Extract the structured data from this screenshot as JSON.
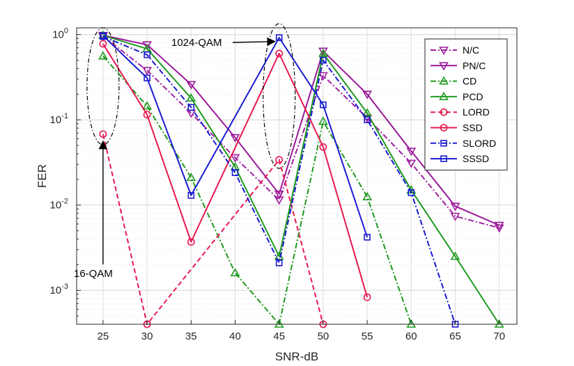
{
  "chart_data": {
    "type": "line",
    "title": "",
    "xlabel": "SNR-dB",
    "ylabel": "FER",
    "xlim": [
      22,
      72
    ],
    "ylim": [
      0.0004,
      1.2
    ],
    "yscale": "log",
    "grid": true,
    "x_ticks": [
      25,
      30,
      35,
      40,
      45,
      50,
      55,
      60,
      65,
      70
    ],
    "x_tick_labels": [
      "25",
      "30",
      "35",
      "40",
      "45",
      "50",
      "55",
      "60",
      "65",
      "70"
    ],
    "y_ticks": [
      {
        "value": 1,
        "base": "10",
        "exp": "0"
      },
      {
        "value": 0.1,
        "base": "10",
        "exp": "-1"
      },
      {
        "value": 0.01,
        "base": "10",
        "exp": "-2"
      },
      {
        "value": 0.001,
        "base": "10",
        "exp": "-3"
      }
    ],
    "legend_position": "top-right",
    "series": [
      {
        "name": "N/C",
        "color": "#a020a0",
        "dash": "dashdot",
        "marker": "triangle-down",
        "x": [
          25,
          30,
          35,
          40,
          45,
          50,
          55,
          60,
          65,
          70
        ],
        "y": [
          0.96,
          0.38,
          0.12,
          0.036,
          0.0115,
          0.33,
          0.105,
          0.031,
          0.0074,
          0.0054
        ]
      },
      {
        "name": "PN/C",
        "color": "#9a189a",
        "dash": "solid",
        "marker": "triangle-down",
        "x": [
          25,
          30,
          35,
          40,
          45,
          50,
          55,
          60,
          65,
          70
        ],
        "y": [
          0.98,
          0.76,
          0.26,
          0.062,
          0.0135,
          0.64,
          0.2,
          0.043,
          0.0097,
          0.0058
        ]
      },
      {
        "name": "CD",
        "color": "#1e9a1e",
        "dash": "dashdot",
        "marker": "triangle-up",
        "x": [
          25,
          30,
          35,
          40,
          45,
          50,
          55,
          60
        ],
        "y": [
          0.56,
          0.145,
          0.021,
          0.0016,
          0.0004,
          0.096,
          0.0125,
          0.0004
        ]
      },
      {
        "name": "PCD",
        "color": "#1e9a1e",
        "dash": "solid",
        "marker": "triangle-up",
        "x": [
          25,
          30,
          35,
          40,
          45,
          50,
          55,
          60,
          65,
          70
        ],
        "y": [
          0.98,
          0.68,
          0.18,
          0.028,
          0.0025,
          0.6,
          0.12,
          0.015,
          0.0025,
          0.0004
        ]
      },
      {
        "name": "LORD",
        "color": "#e8174f",
        "dash": "dashed",
        "marker": "circle",
        "x": [
          25,
          30,
          45,
          50
        ],
        "y": [
          0.068,
          0.0004,
          0.034,
          0.0004
        ]
      },
      {
        "name": "SSD",
        "color": "#e8174f",
        "dash": "solid",
        "marker": "circle",
        "x": [
          25,
          30,
          35,
          45,
          50,
          55
        ],
        "y": [
          0.78,
          0.115,
          0.0037,
          0.6,
          0.048,
          0.00083
        ]
      },
      {
        "name": "SLORD",
        "color": "#1a1ad4",
        "dash": "dashdot",
        "marker": "square",
        "x": [
          25,
          30,
          35,
          40,
          45,
          50,
          55,
          60,
          65
        ],
        "y": [
          0.95,
          0.58,
          0.14,
          0.024,
          0.0021,
          0.5,
          0.1,
          0.014,
          0.0004
        ]
      },
      {
        "name": "SSSD",
        "color": "#1a1ad4",
        "dash": "solid",
        "marker": "square",
        "x": [
          25,
          30,
          35,
          45,
          50,
          55
        ],
        "y": [
          0.97,
          0.31,
          0.013,
          0.92,
          0.15,
          0.0042
        ]
      }
    ],
    "annotations": [
      {
        "text": "1024-QAM",
        "points_to": {
          "x": 45,
          "y": 0.83
        }
      },
      {
        "text": "16-QAM",
        "points_to": {
          "x": 25,
          "y": 0.055
        }
      }
    ]
  }
}
